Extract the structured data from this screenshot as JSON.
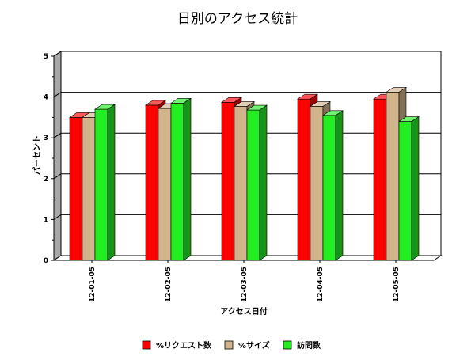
{
  "chart_data": {
    "type": "bar",
    "title": "日別のアクセス統計",
    "xlabel": "アクセス日付",
    "ylabel": "パーセント",
    "categories": [
      "12-01-05",
      "12-02-05",
      "12-03-05",
      "12-04-05",
      "12-05-05"
    ],
    "series": [
      {
        "name": "%リクエスト数",
        "values": [
          3.5,
          3.8,
          3.87,
          3.95,
          3.95
        ],
        "color": "#ff0000"
      },
      {
        "name": "%サイズ",
        "values": [
          3.5,
          3.72,
          3.77,
          3.77,
          4.12
        ],
        "color": "#d2b48c"
      },
      {
        "name": "訪問数",
        "values": [
          3.7,
          3.85,
          3.68,
          3.55,
          3.4
        ],
        "color": "#22ee22"
      }
    ],
    "ylim": [
      0,
      5
    ],
    "yticks": [
      0,
      1,
      2,
      3,
      4,
      5
    ],
    "grid": true,
    "legend": "bottom",
    "style": "3d"
  }
}
